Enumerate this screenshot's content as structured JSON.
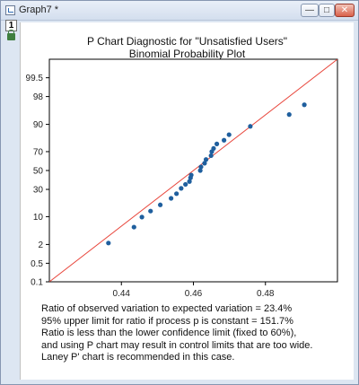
{
  "window": {
    "title": "Graph7 *",
    "layer_tab": "1",
    "buttons": {
      "minimize": "—",
      "maximize": "□",
      "close": "✕"
    }
  },
  "colors": {
    "point": "#1f5f9e",
    "reference_line": "#e8463c",
    "axis": "#000000"
  },
  "chart_data": {
    "type": "scatter",
    "title": "P Chart Diagnostic for \"Unsatisfied Users\"",
    "subtitle": "Binomial Probability Plot",
    "xlabel": "",
    "ylabel": "",
    "xlim": [
      0.42,
      0.5
    ],
    "ylim": [
      0.1,
      99.9
    ],
    "x_scale": "linear",
    "y_scale": "probability",
    "x_ticks": [
      0.44,
      0.46,
      0.48
    ],
    "x_tick_labels": [
      "0.44",
      "0.46",
      "0.48"
    ],
    "y_ticks": [
      0.1,
      0.5,
      2,
      10,
      30,
      50,
      70,
      90,
      98,
      99.5
    ],
    "y_tick_labels": [
      "0.1",
      "0.5",
      "2",
      "10",
      "30",
      "50",
      "70",
      "90",
      "98",
      "99.5"
    ],
    "reference_line": {
      "x": [
        0.42,
        0.5
      ],
      "y": [
        0.1,
        99.9
      ]
    },
    "points": [
      {
        "x": 0.4364,
        "y": 2.2
      },
      {
        "x": 0.4435,
        "y": 5.8
      },
      {
        "x": 0.4457,
        "y": 9.8
      },
      {
        "x": 0.4481,
        "y": 13
      },
      {
        "x": 0.4508,
        "y": 17
      },
      {
        "x": 0.4538,
        "y": 22
      },
      {
        "x": 0.4553,
        "y": 26
      },
      {
        "x": 0.4566,
        "y": 31
      },
      {
        "x": 0.4578,
        "y": 35
      },
      {
        "x": 0.4589,
        "y": 38
      },
      {
        "x": 0.4592,
        "y": 42
      },
      {
        "x": 0.4594,
        "y": 45
      },
      {
        "x": 0.4619,
        "y": 50
      },
      {
        "x": 0.4621,
        "y": 54
      },
      {
        "x": 0.4631,
        "y": 58
      },
      {
        "x": 0.4635,
        "y": 62
      },
      {
        "x": 0.4649,
        "y": 66
      },
      {
        "x": 0.4651,
        "y": 70
      },
      {
        "x": 0.4656,
        "y": 73
      },
      {
        "x": 0.4665,
        "y": 77
      },
      {
        "x": 0.4685,
        "y": 80
      },
      {
        "x": 0.4699,
        "y": 84
      },
      {
        "x": 0.4758,
        "y": 89
      },
      {
        "x": 0.4866,
        "y": 94
      },
      {
        "x": 0.4908,
        "y": 96.6
      }
    ]
  },
  "notes": [
    "Ratio of observed variation to expected variation = 23.4%",
    "95% upper limit for ratio if process p is constant = 151.7%",
    "Ratio is less than the lower confidence limit (fixed to 60%),",
    "and using P chart may result in control limits that are too wide.",
    "Laney P' chart is recommended in this case."
  ]
}
